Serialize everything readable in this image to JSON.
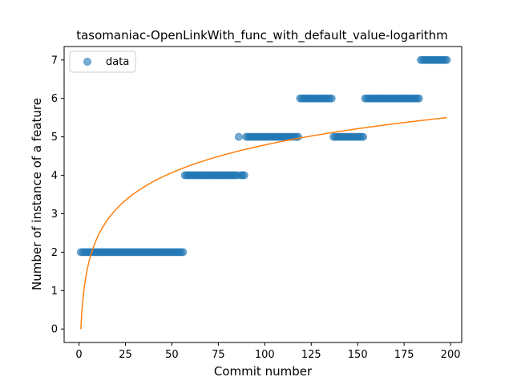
{
  "chart_data": {
    "type": "scatter",
    "title": "tasomaniac-OpenLinkWith_func_with_default_value-logarithm",
    "xlabel": "Commit number",
    "ylabel": "Number of instance of a feature",
    "xlim": [
      -8,
      206
    ],
    "ylim": [
      -0.35,
      7.35
    ],
    "xticks": [
      0,
      25,
      50,
      75,
      100,
      125,
      150,
      175,
      200
    ],
    "yticks": [
      0,
      1,
      2,
      3,
      4,
      5,
      6,
      7
    ],
    "grid": false,
    "legend": {
      "placement": "upper-left",
      "entries": [
        "data"
      ]
    },
    "colors": {
      "data": "#1f77b4",
      "fit": "#ff7f0e"
    },
    "series": [
      {
        "name": "data",
        "kind": "scatter",
        "runs": [
          {
            "x_start": 1,
            "x_end": 56,
            "y": 2
          },
          {
            "x_start": 57,
            "x_end": 85,
            "y": 4
          },
          {
            "x_start": 86,
            "x_end": 86,
            "y": 5
          },
          {
            "x_start": 87,
            "x_end": 89,
            "y": 4
          },
          {
            "x_start": 90,
            "x_end": 118,
            "y": 5
          },
          {
            "x_start": 119,
            "x_end": 136,
            "y": 6
          },
          {
            "x_start": 137,
            "x_end": 153,
            "y": 5
          },
          {
            "x_start": 154,
            "x_end": 183,
            "y": 6
          },
          {
            "x_start": 184,
            "x_end": 198,
            "y": 7
          }
        ]
      },
      {
        "kind": "line",
        "model": "logarithmic",
        "a": 1.04,
        "b": 0,
        "x_range": [
          1,
          198
        ]
      }
    ]
  }
}
